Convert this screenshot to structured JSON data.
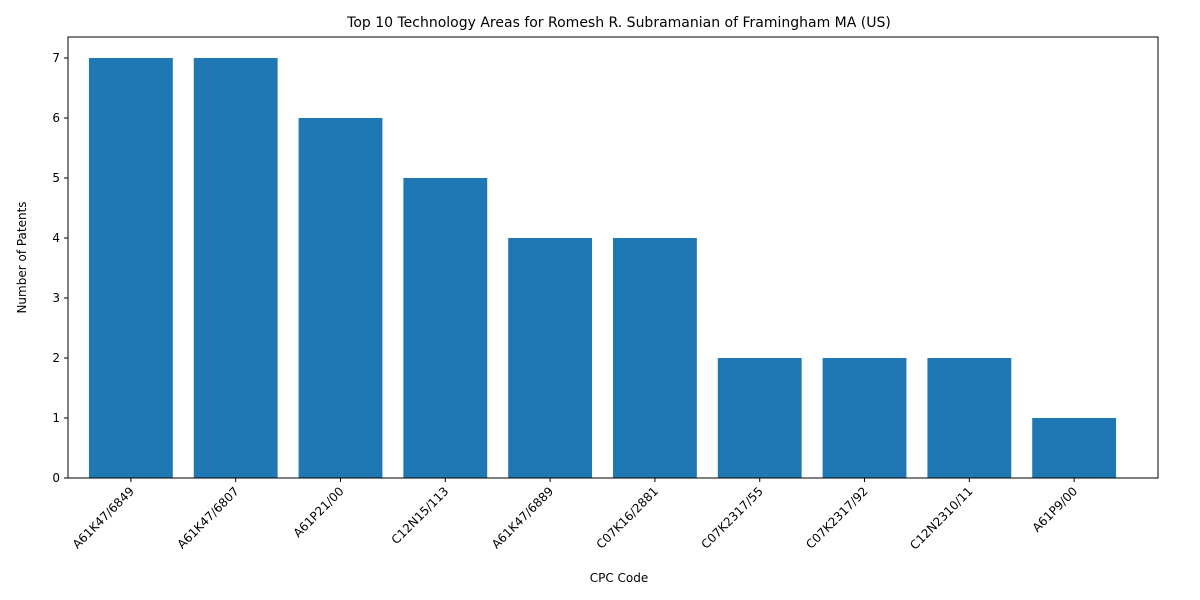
{
  "chart_data": {
    "type": "bar",
    "title": "Top 10 Technology Areas for Romesh R. Subramanian of Framingham MA (US)",
    "xlabel": "CPC Code",
    "ylabel": "Number of Patents",
    "categories": [
      "A61K47/6849",
      "A61K47/6807",
      "A61P21/00",
      "C12N15/113",
      "A61K47/6889",
      "C07K16/2881",
      "C07K2317/55",
      "C07K2317/92",
      "C12N2310/11",
      "A61P9/00"
    ],
    "values": [
      7,
      7,
      6,
      5,
      4,
      4,
      2,
      2,
      2,
      1
    ],
    "ylim": [
      0,
      7.35
    ],
    "yticks": [
      0,
      1,
      2,
      3,
      4,
      5,
      6,
      7
    ],
    "bar_color": "#1f77b4",
    "grid": false,
    "legend": "none"
  }
}
